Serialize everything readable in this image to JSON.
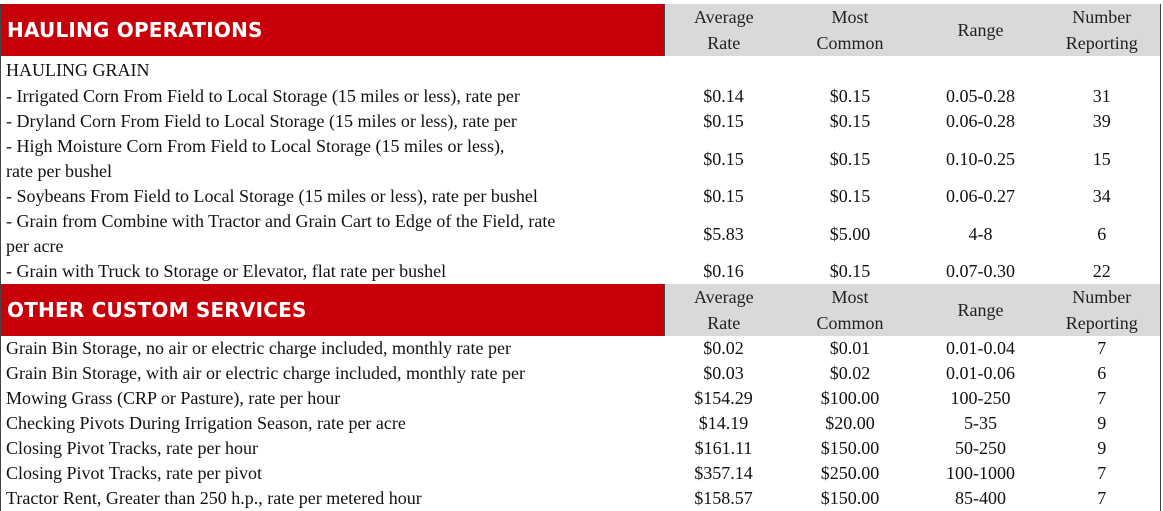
{
  "hauling": {
    "title": "HAULING OPERATIONS",
    "headers": {
      "avg": [
        "Average",
        "Rate"
      ],
      "common": [
        "Most",
        "Common"
      ],
      "range": "Range",
      "number": [
        "Number",
        "Reporting"
      ]
    },
    "subheading": "HAULING GRAIN",
    "rows": [
      {
        "desc": "- Irrigated Corn From Field to Local Storage (15 miles or less), rate per",
        "avg": "$0.14",
        "common": "$0.15",
        "range": "0.05-0.28",
        "number": "31"
      },
      {
        "desc": "- Dryland Corn From Field to Local Storage (15 miles or less), rate per",
        "avg": "$0.15",
        "common": "$0.15",
        "range": "0.06-0.28",
        "number": "39"
      },
      {
        "desc": "- High Moisture Corn From Field to Local Storage (15 miles or less),",
        "desc2": "rate per bushel",
        "avg": "$0.15",
        "common": "$0.15",
        "range": "0.10-0.25",
        "number": "15"
      },
      {
        "desc": "- Soybeans From Field to Local Storage (15 miles or less), rate per bushel",
        "avg": "$0.15",
        "common": "$0.15",
        "range": "0.06-0.27",
        "number": "34"
      },
      {
        "desc": "- Grain from Combine with Tractor and Grain Cart to Edge of the Field, rate",
        "desc2": "per acre",
        "avg": "$5.83",
        "common": "$5.00",
        "range": "4-8",
        "number": "6"
      },
      {
        "desc": "- Grain with Truck to Storage or Elevator, flat rate per bushel",
        "avg": "$0.16",
        "common": "$0.15",
        "range": "0.07-0.30",
        "number": "22"
      }
    ]
  },
  "other": {
    "title": "OTHER CUSTOM SERVICES",
    "headers": {
      "avg": [
        "Average",
        "Rate"
      ],
      "common": [
        "Most",
        "Common"
      ],
      "range": "Range",
      "number": [
        "Number",
        "Reporting"
      ]
    },
    "rows": [
      {
        "desc": "Grain Bin Storage, no air or electric charge included, monthly rate per",
        "avg": "$0.02",
        "common": "$0.01",
        "range": "0.01-0.04",
        "number": "7"
      },
      {
        "desc": "Grain Bin Storage, with air or electric charge included, monthly rate per",
        "avg": "$0.03",
        "common": "$0.02",
        "range": "0.01-0.06",
        "number": "6"
      },
      {
        "desc": "Mowing Grass (CRP or Pasture), rate per hour",
        "avg": "$154.29",
        "common": "$100.00",
        "range": "100-250",
        "number": "7"
      },
      {
        "desc": "Checking Pivots During Irrigation Season, rate per acre",
        "avg": "$14.19",
        "common": "$20.00",
        "range": "5-35",
        "number": "9"
      },
      {
        "desc": "Closing Pivot Tracks, rate per hour",
        "avg": "$161.11",
        "common": "$150.00",
        "range": "50-250",
        "number": "9"
      },
      {
        "desc": "Closing Pivot Tracks, rate per pivot",
        "avg": "$357.14",
        "common": "$250.00",
        "range": "100-1000",
        "number": "7"
      },
      {
        "desc": "Tractor Rent, Greater than 250 h.p., rate per metered hour",
        "avg": "$158.57",
        "common": "$150.00",
        "range": "85-400",
        "number": "7"
      }
    ]
  }
}
